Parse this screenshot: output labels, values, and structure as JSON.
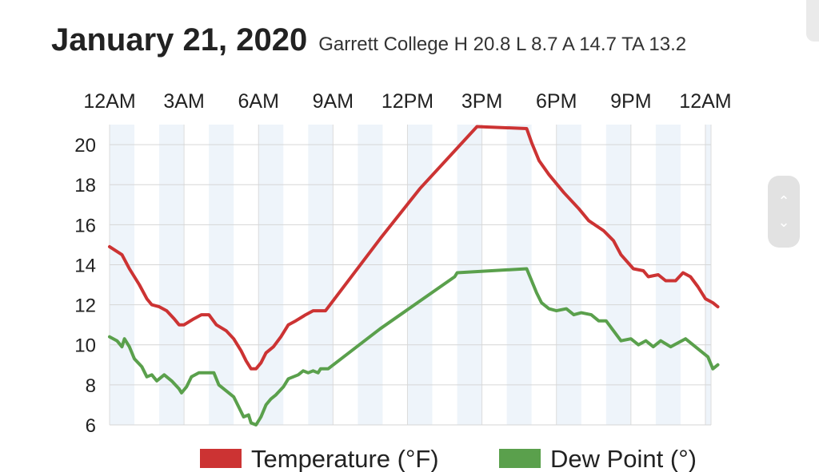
{
  "header": {
    "date": "January 21, 2020",
    "summary": "Garrett College H 20.8 L 8.7 A 14.7 TA  13.2"
  },
  "scroll_control": {
    "up_icon": "chevron-up-icon",
    "down_icon": "chevron-down-icon"
  },
  "chart_data": {
    "type": "line",
    "title": "January 21, 2020",
    "subtitle": "Garrett College H 20.8 L 8.7 A 14.7 TA  13.2",
    "x_ticks": [
      "12AM",
      "3AM",
      "6AM",
      "9AM",
      "12PM",
      "3PM",
      "6PM",
      "9PM",
      "12AM"
    ],
    "xlim_hours": [
      0,
      24
    ],
    "ylim": [
      6,
      21
    ],
    "y_ticks": [
      6,
      8,
      10,
      12,
      14,
      16,
      18,
      20
    ],
    "grid": true,
    "legend_position": "bottom",
    "series": [
      {
        "name": "Temperature (°F)",
        "color": "#cc3333",
        "points": [
          [
            0,
            14.9
          ],
          [
            0.5,
            14.5
          ],
          [
            0.8,
            13.8
          ],
          [
            1.2,
            13.0
          ],
          [
            1.5,
            12.3
          ],
          [
            1.7,
            12.0
          ],
          [
            2.0,
            11.9
          ],
          [
            2.3,
            11.7
          ],
          [
            2.6,
            11.3
          ],
          [
            2.8,
            11.0
          ],
          [
            3.0,
            11.0
          ],
          [
            3.4,
            11.3
          ],
          [
            3.7,
            11.5
          ],
          [
            4.0,
            11.5
          ],
          [
            4.3,
            11.0
          ],
          [
            4.7,
            10.7
          ],
          [
            5.0,
            10.3
          ],
          [
            5.3,
            9.7
          ],
          [
            5.5,
            9.2
          ],
          [
            5.7,
            8.8
          ],
          [
            5.9,
            8.8
          ],
          [
            6.1,
            9.1
          ],
          [
            6.3,
            9.6
          ],
          [
            6.6,
            9.9
          ],
          [
            6.9,
            10.4
          ],
          [
            7.2,
            11.0
          ],
          [
            7.5,
            11.2
          ],
          [
            7.9,
            11.5
          ],
          [
            8.2,
            11.7
          ],
          [
            8.5,
            11.7
          ],
          [
            8.7,
            11.7
          ],
          [
            10.9,
            15.3
          ],
          [
            12.5,
            17.8
          ],
          [
            14.8,
            20.9
          ],
          [
            16.8,
            20.8
          ],
          [
            17.0,
            20.1
          ],
          [
            17.3,
            19.2
          ],
          [
            17.7,
            18.5
          ],
          [
            18.3,
            17.6
          ],
          [
            18.9,
            16.8
          ],
          [
            19.3,
            16.2
          ],
          [
            19.9,
            15.7
          ],
          [
            20.3,
            15.2
          ],
          [
            20.6,
            14.5
          ],
          [
            21.1,
            13.8
          ],
          [
            21.5,
            13.7
          ],
          [
            21.7,
            13.4
          ],
          [
            22.1,
            13.5
          ],
          [
            22.4,
            13.2
          ],
          [
            22.8,
            13.2
          ],
          [
            23.1,
            13.6
          ],
          [
            23.4,
            13.4
          ],
          [
            23.7,
            12.9
          ],
          [
            24.0,
            12.3
          ],
          [
            24.3,
            12.1
          ],
          [
            24.5,
            11.9
          ]
        ]
      },
      {
        "name": "Dew Point (°)",
        "color": "#5aa04c",
        "points": [
          [
            0,
            10.4
          ],
          [
            0.3,
            10.2
          ],
          [
            0.5,
            9.9
          ],
          [
            0.6,
            10.3
          ],
          [
            0.8,
            9.9
          ],
          [
            1.0,
            9.3
          ],
          [
            1.3,
            8.9
          ],
          [
            1.5,
            8.4
          ],
          [
            1.7,
            8.5
          ],
          [
            1.9,
            8.2
          ],
          [
            2.2,
            8.5
          ],
          [
            2.5,
            8.2
          ],
          [
            2.8,
            7.8
          ],
          [
            2.9,
            7.6
          ],
          [
            3.1,
            7.9
          ],
          [
            3.3,
            8.4
          ],
          [
            3.6,
            8.6
          ],
          [
            3.9,
            8.6
          ],
          [
            4.2,
            8.6
          ],
          [
            4.4,
            8.0
          ],
          [
            4.7,
            7.7
          ],
          [
            5.0,
            7.4
          ],
          [
            5.2,
            6.9
          ],
          [
            5.4,
            6.4
          ],
          [
            5.6,
            6.5
          ],
          [
            5.7,
            6.1
          ],
          [
            5.9,
            6.0
          ],
          [
            6.1,
            6.4
          ],
          [
            6.3,
            7.0
          ],
          [
            6.5,
            7.3
          ],
          [
            6.7,
            7.5
          ],
          [
            7.0,
            7.9
          ],
          [
            7.2,
            8.3
          ],
          [
            7.4,
            8.4
          ],
          [
            7.6,
            8.5
          ],
          [
            7.8,
            8.7
          ],
          [
            8.0,
            8.6
          ],
          [
            8.2,
            8.7
          ],
          [
            8.4,
            8.6
          ],
          [
            8.5,
            8.8
          ],
          [
            8.8,
            8.8
          ],
          [
            10.9,
            10.8
          ],
          [
            13.9,
            13.4
          ],
          [
            14.0,
            13.6
          ],
          [
            16.8,
            13.8
          ],
          [
            17.0,
            13.2
          ],
          [
            17.2,
            12.6
          ],
          [
            17.4,
            12.1
          ],
          [
            17.7,
            11.8
          ],
          [
            18.0,
            11.7
          ],
          [
            18.4,
            11.8
          ],
          [
            18.7,
            11.5
          ],
          [
            19.0,
            11.6
          ],
          [
            19.4,
            11.5
          ],
          [
            19.7,
            11.2
          ],
          [
            20.0,
            11.2
          ],
          [
            20.3,
            10.7
          ],
          [
            20.6,
            10.2
          ],
          [
            21.0,
            10.3
          ],
          [
            21.3,
            10.0
          ],
          [
            21.6,
            10.2
          ],
          [
            21.9,
            9.9
          ],
          [
            22.2,
            10.2
          ],
          [
            22.6,
            9.9
          ],
          [
            22.9,
            10.1
          ],
          [
            23.2,
            10.3
          ],
          [
            23.5,
            10.0
          ],
          [
            23.8,
            9.7
          ],
          [
            24.1,
            9.4
          ],
          [
            24.3,
            8.8
          ],
          [
            24.5,
            9.0
          ]
        ]
      }
    ]
  }
}
